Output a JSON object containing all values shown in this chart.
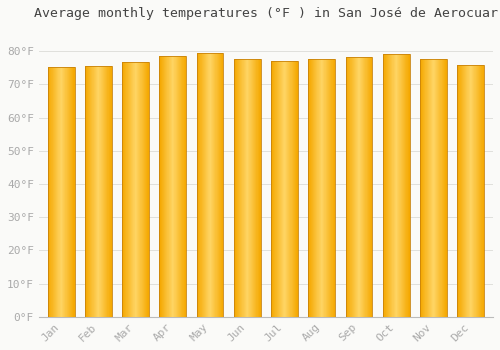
{
  "title": "Average monthly temperatures (°F ) in San José de Aerocuar",
  "months": [
    "Jan",
    "Feb",
    "Mar",
    "Apr",
    "May",
    "Jun",
    "Jul",
    "Aug",
    "Sep",
    "Oct",
    "Nov",
    "Dec"
  ],
  "values": [
    75.2,
    75.5,
    76.7,
    78.6,
    79.5,
    77.7,
    77.2,
    77.7,
    78.2,
    79.2,
    77.7,
    76.0
  ],
  "bar_color_left": "#F5A800",
  "bar_color_center": "#FFD060",
  "bar_color_right": "#F5A800",
  "bar_edge_color": "#C8820A",
  "background_color": "#FAFAF8",
  "plot_bg_color": "#FAFAF8",
  "grid_color": "#E0E0DC",
  "tick_label_color": "#AAAAAA",
  "title_color": "#444444",
  "ylim": [
    0,
    87
  ],
  "yticks": [
    0,
    10,
    20,
    30,
    40,
    50,
    60,
    70,
    80
  ],
  "title_fontsize": 9.5,
  "tick_fontsize": 8,
  "bar_width": 0.72
}
